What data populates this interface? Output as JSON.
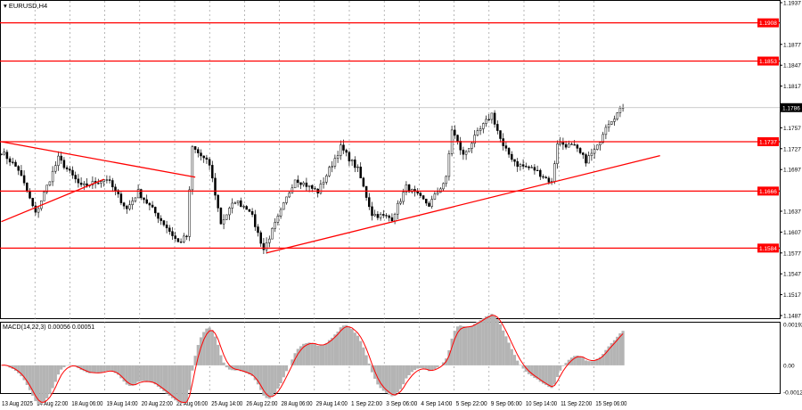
{
  "window": {
    "symbol_title": "EURUSD,H4"
  },
  "colors": {
    "candles": "#000000",
    "levels": "#ff0000",
    "trend": "#ff0000",
    "hist": "#b4b4b4",
    "signal": "#ff0000",
    "current_label_bg": "#000000"
  },
  "chart_data": [
    {
      "type": "candlestick",
      "title": "EURUSD,H4",
      "ylim": [
        1.1487,
        1.1937
      ],
      "y_ticks": [
        "1.1937",
        "1.1877",
        "1.1847",
        "1.1817",
        "1.1757",
        "1.1727",
        "1.1697",
        "1.1637",
        "1.1607",
        "1.1577",
        "1.1547",
        "1.1517",
        "1.1487"
      ],
      "x_ticks": [
        "13 Aug 2025",
        "14 Aug 22:00",
        "18 Aug 06:00",
        "19 Aug 14:00",
        "20 Aug 22:00",
        "22 Aug 06:00",
        "25 Aug 14:00",
        "26 Aug 22:00",
        "28 Aug 06:00",
        "29 Aug 14:00",
        "1 Sep 22:00",
        "3 Sep 06:00",
        "4 Sep 14:00",
        "5 Sep 22:00",
        "9 Sep 06:00",
        "10 Sep 14:00",
        "11 Sep 22:00",
        "15 Sep 06:00"
      ],
      "levels": [
        "1.1908",
        "1.1853",
        "1.1737",
        "1.1666",
        "1.1584"
      ],
      "current_price": "1.1786",
      "close_waypoints_bar_price": [
        [
          0,
          1.1723
        ],
        [
          6,
          1.1697
        ],
        [
          12,
          1.1633
        ],
        [
          20,
          1.1713
        ],
        [
          28,
          1.1672
        ],
        [
          37,
          1.1684
        ],
        [
          44,
          1.164
        ],
        [
          48,
          1.1665
        ],
        [
          58,
          1.1614
        ],
        [
          62,
          1.1592
        ],
        [
          65,
          1.1601
        ],
        [
          67,
          1.1729
        ],
        [
          73,
          1.1704
        ],
        [
          77,
          1.162
        ],
        [
          82,
          1.1652
        ],
        [
          87,
          1.164
        ],
        [
          92,
          1.1582
        ],
        [
          97,
          1.1627
        ],
        [
          103,
          1.1684
        ],
        [
          111,
          1.1665
        ],
        [
          119,
          1.1729
        ],
        [
          125,
          1.1697
        ],
        [
          130,
          1.1633
        ],
        [
          137,
          1.1627
        ],
        [
          142,
          1.1672
        ],
        [
          150,
          1.1646
        ],
        [
          156,
          1.1684
        ],
        [
          158,
          1.1755
        ],
        [
          162,
          1.1717
        ],
        [
          167,
          1.1749
        ],
        [
          172,
          1.1777
        ],
        [
          176,
          1.1729
        ],
        [
          181,
          1.1704
        ],
        [
          187,
          1.1697
        ],
        [
          193,
          1.1678
        ],
        [
          195,
          1.1736
        ],
        [
          201,
          1.1729
        ],
        [
          205,
          1.171
        ],
        [
          209,
          1.1729
        ],
        [
          212,
          1.1761
        ],
        [
          218,
          1.1786
        ]
      ],
      "trendlines_bar_price": [
        [
          [
            0,
            1.1737
          ],
          [
            68,
            1.1686
          ]
        ],
        [
          [
            0,
            1.1622
          ],
          [
            36,
            1.1683
          ]
        ],
        [
          [
            93,
            1.1577
          ],
          [
            231,
            1.1717
          ]
        ]
      ]
    },
    {
      "type": "bar+line",
      "title": "MACD(14,22,3)",
      "values_label": [
        "0.00056",
        "0.00051"
      ],
      "y_ticks": [
        "0.00192",
        "0.00",
        "-0.00126"
      ],
      "ylim": [
        -0.00126,
        0.00192
      ]
    }
  ]
}
